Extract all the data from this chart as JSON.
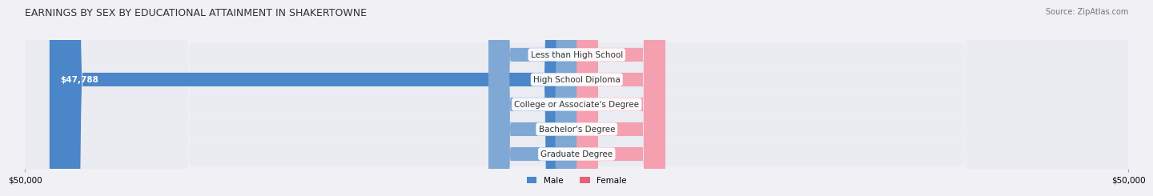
{
  "title": "EARNINGS BY SEX BY EDUCATIONAL ATTAINMENT IN SHAKERTOWNE",
  "source": "Source: ZipAtlas.com",
  "categories": [
    "Less than High School",
    "High School Diploma",
    "College or Associate's Degree",
    "Bachelor's Degree",
    "Graduate Degree"
  ],
  "male_values": [
    0,
    47788,
    0,
    0,
    0
  ],
  "female_values": [
    0,
    0,
    0,
    0,
    0
  ],
  "male_color": "#7fa8d4",
  "male_color_dark": "#4a86c8",
  "female_color": "#f4a0b0",
  "female_color_dark": "#e8607a",
  "male_label": "Male",
  "female_label": "Female",
  "xlim": [
    -50000,
    50000
  ],
  "x_ticks": [
    -50000,
    50000
  ],
  "x_tick_labels": [
    "$50,000",
    "$50,000"
  ],
  "bar_height": 0.55,
  "background_color": "#f0f0f5",
  "row_bg_light": "#f5f5fa",
  "row_bg_dark": "#e8e8f0",
  "label_font_size": 7.5,
  "title_font_size": 9,
  "source_font_size": 7
}
